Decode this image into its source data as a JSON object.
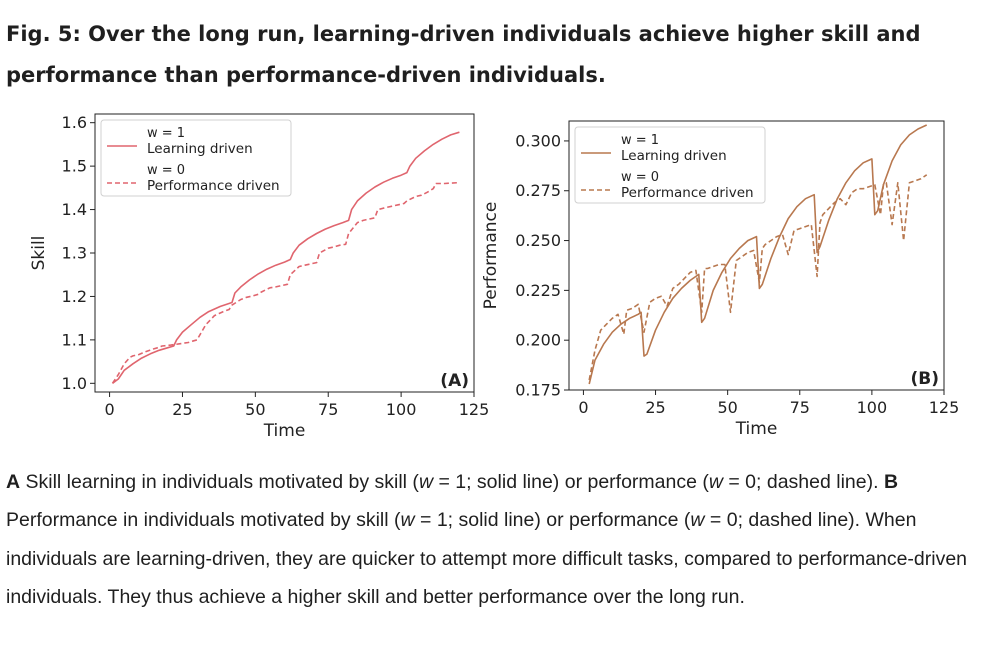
{
  "figure": {
    "title": "Fig. 5: Over the long run, learning-driven individuals achieve higher skill and performance than performance-driven individuals."
  },
  "caption": {
    "label_a": "A",
    "part_a_1": " Skill learning in individuals motivated by skill (",
    "w": "w",
    "eq1": " = 1; solid line) or performance (",
    "eq0": " = 0; dashed line). ",
    "label_b": "B",
    "part_b_1": " Performance in individuals motivated by skill (",
    "eq1b": " = 1; solid line) or performance (",
    "eq0b": " = 0; dashed line). When individuals are learning-driven, they are quicker to attempt more difficult tasks, compared to performance-driven individuals. They thus achieve a higher skill and better performance over the long run."
  },
  "chart_data": [
    {
      "type": "line",
      "panel_label": "(A)",
      "xlabel": "Time",
      "ylabel": "Skill",
      "xlim": [
        -5,
        125
      ],
      "ylim": [
        0.98,
        1.62
      ],
      "xticks": [
        0,
        25,
        50,
        75,
        100,
        125
      ],
      "yticks": [
        1.0,
        1.1,
        1.2,
        1.3,
        1.4,
        1.5,
        1.6
      ],
      "ytick_labels": [
        "1.0",
        "1.1",
        "1.2",
        "1.3",
        "1.4",
        "1.5",
        "1.6"
      ],
      "legend_position": "top-left",
      "color": "#e0656e",
      "series": [
        {
          "name": "Learning driven",
          "legend_header": "w = 1",
          "style": "solid",
          "x": [
            1,
            3,
            5,
            8,
            11,
            14,
            17,
            20,
            22,
            23,
            25,
            28,
            31,
            34,
            38,
            42,
            43,
            45,
            48,
            51,
            54,
            57,
            60,
            62,
            63,
            65,
            68,
            71,
            74,
            77,
            80,
            82,
            83,
            85,
            88,
            91,
            94,
            97,
            100,
            102,
            103,
            105,
            108,
            111,
            114,
            117,
            120
          ],
          "y": [
            1.0,
            1.01,
            1.03,
            1.045,
            1.058,
            1.068,
            1.076,
            1.082,
            1.086,
            1.1,
            1.118,
            1.135,
            1.152,
            1.165,
            1.177,
            1.186,
            1.208,
            1.222,
            1.238,
            1.252,
            1.263,
            1.272,
            1.279,
            1.285,
            1.3,
            1.318,
            1.333,
            1.345,
            1.355,
            1.363,
            1.37,
            1.375,
            1.4,
            1.42,
            1.438,
            1.452,
            1.463,
            1.472,
            1.479,
            1.485,
            1.5,
            1.518,
            1.535,
            1.55,
            1.562,
            1.572,
            1.578
          ]
        },
        {
          "name": "Performance driven",
          "legend_header": "w = 0",
          "style": "dashed",
          "x": [
            1,
            3,
            5,
            7,
            8,
            10,
            12,
            15,
            17,
            18,
            21,
            24,
            27,
            29,
            30,
            33,
            36,
            39,
            41,
            42,
            45,
            47,
            49,
            51,
            52,
            55,
            57,
            59,
            61,
            62,
            65,
            67,
            69,
            71,
            72,
            75,
            77,
            79,
            81,
            82,
            85,
            87,
            89,
            91,
            92,
            95,
            97,
            99,
            101,
            102,
            105,
            107,
            109,
            111,
            112,
            115,
            117,
            120
          ],
          "y": [
            1.0,
            1.02,
            1.045,
            1.06,
            1.063,
            1.066,
            1.072,
            1.079,
            1.083,
            1.086,
            1.088,
            1.091,
            1.094,
            1.098,
            1.1,
            1.135,
            1.156,
            1.165,
            1.17,
            1.18,
            1.193,
            1.198,
            1.201,
            1.205,
            1.21,
            1.22,
            1.222,
            1.225,
            1.228,
            1.25,
            1.269,
            1.272,
            1.275,
            1.278,
            1.3,
            1.311,
            1.314,
            1.318,
            1.32,
            1.345,
            1.37,
            1.375,
            1.378,
            1.381,
            1.4,
            1.405,
            1.408,
            1.411,
            1.414,
            1.42,
            1.43,
            1.433,
            1.44,
            1.448,
            1.46,
            1.46,
            1.461,
            1.462
          ]
        }
      ]
    },
    {
      "type": "line",
      "panel_label": "(B)",
      "xlabel": "Time",
      "ylabel": "Performance",
      "xlim": [
        -5,
        125
      ],
      "ylim": [
        0.175,
        0.31
      ],
      "xticks": [
        0,
        25,
        50,
        75,
        100,
        125
      ],
      "yticks": [
        0.175,
        0.2,
        0.225,
        0.25,
        0.275,
        0.3
      ],
      "ytick_labels": [
        "0.175",
        "0.200",
        "0.225",
        "0.250",
        "0.275",
        "0.300"
      ],
      "legend_position": "top-left",
      "color": "#b8784f",
      "series": [
        {
          "name": "Learning driven",
          "legend_header": "w = 1",
          "style": "solid",
          "x": [
            2,
            4,
            7,
            10,
            13,
            16,
            19,
            20,
            21,
            22,
            25,
            28,
            31,
            34,
            37,
            40,
            41,
            42,
            45,
            48,
            51,
            54,
            57,
            60,
            61,
            62,
            65,
            68,
            71,
            74,
            77,
            80,
            81,
            82,
            85,
            88,
            91,
            94,
            97,
            100,
            101,
            102,
            104,
            107,
            110,
            113,
            116,
            119
          ],
          "y": [
            0.178,
            0.19,
            0.198,
            0.204,
            0.208,
            0.211,
            0.213,
            0.214,
            0.192,
            0.193,
            0.205,
            0.214,
            0.221,
            0.226,
            0.23,
            0.233,
            0.209,
            0.211,
            0.225,
            0.234,
            0.241,
            0.246,
            0.25,
            0.252,
            0.226,
            0.228,
            0.241,
            0.252,
            0.261,
            0.267,
            0.271,
            0.273,
            0.244,
            0.247,
            0.26,
            0.271,
            0.279,
            0.285,
            0.289,
            0.291,
            0.263,
            0.265,
            0.278,
            0.29,
            0.298,
            0.303,
            0.306,
            0.308
          ]
        },
        {
          "name": "Performance driven",
          "legend_header": "w = 0",
          "style": "dashed",
          "x": [
            2,
            4,
            6,
            8,
            10,
            12,
            14,
            15,
            17,
            19,
            21,
            23,
            25,
            27,
            29,
            31,
            33,
            35,
            37,
            39,
            41,
            42,
            43,
            45,
            47,
            49,
            51,
            53,
            55,
            57,
            59,
            61,
            62,
            63,
            65,
            67,
            69,
            71,
            73,
            75,
            77,
            79,
            81,
            82,
            83,
            85,
            87,
            89,
            91,
            93,
            95,
            97,
            99,
            101,
            103,
            104,
            105,
            107,
            109,
            111,
            113,
            115,
            117,
            119
          ],
          "y": [
            0.18,
            0.195,
            0.205,
            0.208,
            0.211,
            0.213,
            0.203,
            0.215,
            0.216,
            0.218,
            0.204,
            0.219,
            0.221,
            0.222,
            0.217,
            0.226,
            0.228,
            0.231,
            0.234,
            0.235,
            0.214,
            0.236,
            0.236,
            0.237,
            0.238,
            0.238,
            0.214,
            0.24,
            0.242,
            0.244,
            0.245,
            0.229,
            0.246,
            0.248,
            0.25,
            0.252,
            0.253,
            0.243,
            0.255,
            0.256,
            0.257,
            0.258,
            0.232,
            0.259,
            0.263,
            0.266,
            0.269,
            0.271,
            0.268,
            0.274,
            0.276,
            0.276,
            0.277,
            0.278,
            0.263,
            0.278,
            0.279,
            0.258,
            0.279,
            0.25,
            0.279,
            0.28,
            0.281,
            0.283
          ]
        }
      ]
    }
  ]
}
